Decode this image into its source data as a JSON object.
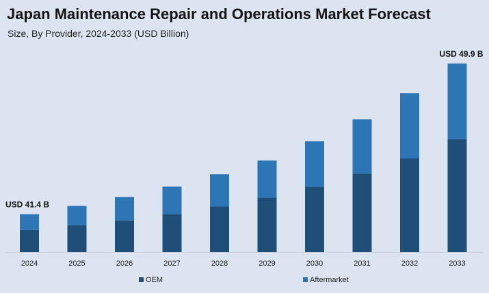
{
  "chart_data": {
    "type": "bar",
    "stacked": true,
    "title": "Japan Maintenance Repair and Operations Market Forecast",
    "subtitle": "Size, By Provider,  2024-2033 (USD Billion)",
    "categories": [
      "2024",
      "2025",
      "2026",
      "2027",
      "2028",
      "2029",
      "2030",
      "2031",
      "2032",
      "2033"
    ],
    "series": [
      {
        "name": "OEM",
        "color": "#1f4e79",
        "values": [
          3.2,
          3.9,
          4.6,
          5.5,
          6.6,
          7.9,
          9.5,
          11.4,
          13.6,
          16.4
        ]
      },
      {
        "name": "Aftermarket",
        "color": "#2e75b6",
        "values": [
          2.3,
          2.8,
          3.4,
          4.0,
          4.7,
          5.4,
          6.6,
          7.9,
          9.5,
          11.0
        ]
      }
    ],
    "ylim": [
      0,
      28
    ],
    "grid": false,
    "legend": "bottom",
    "annotations": [
      {
        "category": "2024",
        "text": "USD 41.4 B"
      },
      {
        "category": "2033",
        "text": "USD 49.9 B"
      }
    ]
  }
}
